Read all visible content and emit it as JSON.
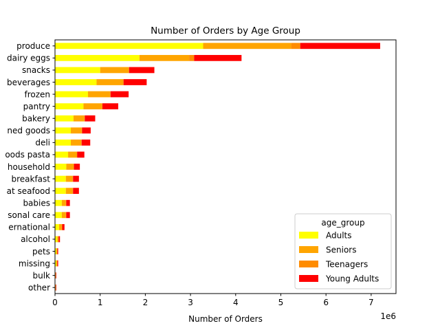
{
  "chart_data": {
    "type": "bar",
    "orientation": "horizontal",
    "stacked": true,
    "title": "Number of Orders by Age Group",
    "xlabel": "Number of Orders",
    "ylabel": "",
    "x_scale_label": "1e6",
    "xlim": [
      0,
      7.55
    ],
    "x_ticks": [
      0,
      1,
      2,
      3,
      4,
      5,
      6,
      7
    ],
    "grid": false,
    "legend": {
      "title": "age_group",
      "position": "lower-right"
    },
    "categories": [
      "produce",
      "dairy eggs",
      "snacks",
      "beverages",
      "frozen",
      "pantry",
      "bakery",
      "canned goods",
      "deli",
      "dry goods pasta",
      "household",
      "breakfast",
      "meat seafood",
      "babies",
      "personal care",
      "international",
      "alcohol",
      "pets",
      "missing",
      "bulk",
      "other"
    ],
    "visible_tick_labels": [
      "produce",
      "dairy eggs",
      "snacks",
      "beverages",
      "frozen",
      "pantry",
      "bakery",
      "ned goods",
      "deli",
      "oods pasta",
      "household",
      "breakfast",
      "at seafood",
      "babies",
      "sonal care",
      "ernational",
      "alcohol",
      "pets",
      "missing",
      "bulk",
      "other"
    ],
    "series": [
      {
        "name": "Adults",
        "color": "#ffff00",
        "values": [
          3.28,
          1.87,
          1.0,
          0.92,
          0.73,
          0.63,
          0.41,
          0.35,
          0.35,
          0.29,
          0.25,
          0.24,
          0.24,
          0.15,
          0.15,
          0.09,
          0.05,
          0.03,
          0.03,
          0.01,
          0.01
        ]
      },
      {
        "name": "Seniors",
        "color": "#ffa500",
        "values": [
          1.95,
          1.1,
          0.63,
          0.58,
          0.49,
          0.41,
          0.24,
          0.24,
          0.23,
          0.19,
          0.16,
          0.15,
          0.15,
          0.09,
          0.09,
          0.06,
          0.03,
          0.02,
          0.02,
          0.01,
          0.01
        ]
      },
      {
        "name": "Teenagers",
        "color": "#ff8c00",
        "values": [
          0.2,
          0.11,
          0.01,
          0.02,
          0.01,
          0.01,
          0.01,
          0.01,
          0.01,
          0.01,
          0.01,
          0.01,
          0.01,
          0.01,
          0.01,
          0.01,
          0.0,
          0.0,
          0.0,
          0.0,
          0.0
        ]
      },
      {
        "name": "Young Adults",
        "color": "#ff0000",
        "values": [
          1.77,
          1.05,
          0.56,
          0.51,
          0.4,
          0.35,
          0.23,
          0.19,
          0.19,
          0.16,
          0.13,
          0.13,
          0.13,
          0.08,
          0.08,
          0.05,
          0.03,
          0.02,
          0.02,
          0.01,
          0.01
        ]
      }
    ]
  }
}
